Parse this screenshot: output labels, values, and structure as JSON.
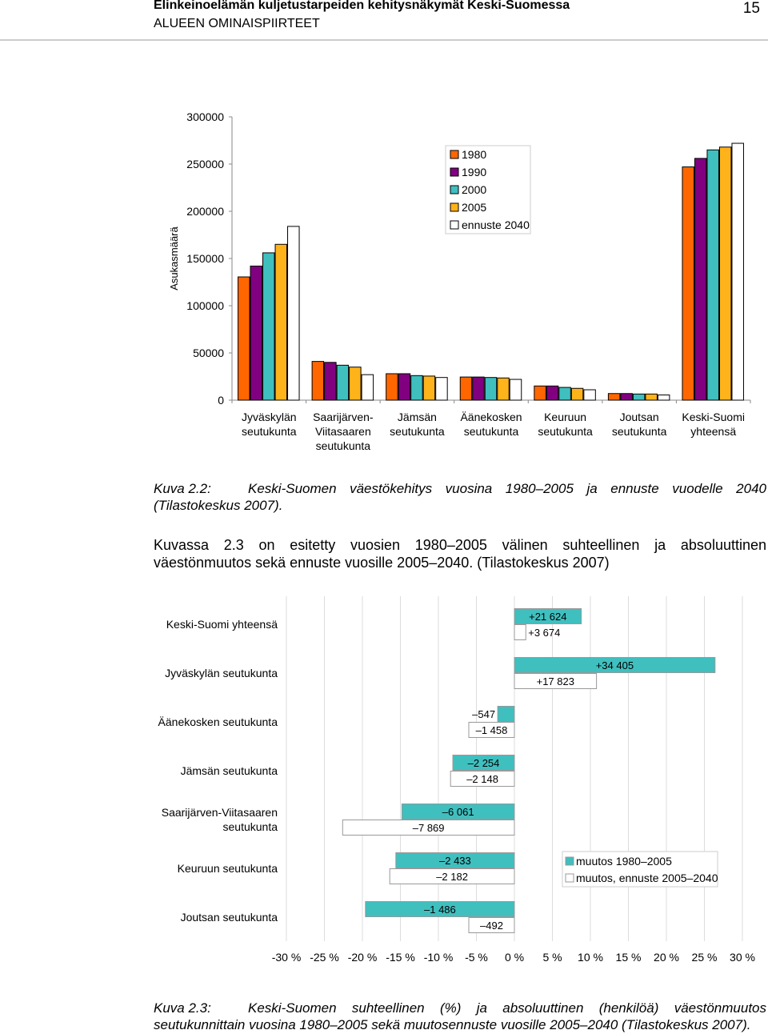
{
  "header": {
    "title": "Elinkeinoelämän kuljetustarpeiden kehitysnäkymät Keski-Suomessa",
    "section": "ALUEEN OMINAISPIIRTEET",
    "page_number": "15"
  },
  "chart_data": [
    {
      "type": "bar",
      "y_label": "Asukasmäärä",
      "categories": [
        "Jyväskylän\nseutukunta",
        "Saarijärven-\nViitasaaren\nseutukunta",
        "Jämsän\nseutukunta",
        "Äänekosken\nseutukunta",
        "Keuruun\nseutukunta",
        "Joutsan\nseutukunta",
        "Keski-Suomi\nyhteensä"
      ],
      "series": [
        {
          "name": "1980",
          "color": "#ff6600",
          "values": [
            130500,
            41000,
            28000,
            24500,
            15000,
            7000,
            247000
          ]
        },
        {
          "name": "1990",
          "color": "#800080",
          "values": [
            142000,
            40000,
            28000,
            24500,
            15000,
            7000,
            256000
          ]
        },
        {
          "name": "2000",
          "color": "#40bfbf",
          "values": [
            156000,
            37000,
            26000,
            24000,
            13500,
            6500,
            265000
          ]
        },
        {
          "name": "2005",
          "color": "#ffb31a",
          "values": [
            165000,
            35000,
            25500,
            23500,
            12500,
            6500,
            268000
          ]
        },
        {
          "name": "ennuste 2040",
          "color": "#ffffff",
          "values": [
            184000,
            27000,
            24000,
            22000,
            11000,
            5500,
            272000
          ]
        }
      ],
      "ylim": [
        0,
        300000
      ],
      "yticks": [
        0,
        50000,
        100000,
        150000,
        200000,
        250000,
        300000
      ],
      "legend": "top"
    },
    {
      "type": "hbar",
      "categories": [
        "Keski-Suomi yhteensä",
        "Jyväskylän seutukunta",
        "Äänekosken seutukunta",
        "Jämsän seutukunta",
        "Saarijärven-Viitasaaren\nseutukunta",
        "Keuruun seutukunta",
        "Joutsan seutukunta"
      ],
      "series": [
        {
          "name": "muutos 1980–2005",
          "color": "#40bfbf",
          "values": [
            8.8,
            26.4,
            -2.2,
            -8.1,
            -14.8,
            -15.6,
            -19.6
          ],
          "change_labels": [
            "+21 624",
            "+34 405",
            "–547",
            "–2 254",
            "–6 061",
            "–2 433",
            "–1 486"
          ]
        },
        {
          "name": "muutos, ennuste 2005–2040",
          "color": "#ffffff",
          "values": [
            1.5,
            10.8,
            -6.0,
            -8.4,
            -22.6,
            -16.4,
            -6.0
          ],
          "change_labels": [
            "+3 674",
            "+17 823",
            "–1 458",
            "–2 148",
            "–7 869",
            "–2 182",
            "–492"
          ]
        }
      ],
      "xlim": [
        -30,
        30
      ],
      "xticks": [
        {
          "value": -30,
          "label": "-30 %"
        },
        {
          "value": -25,
          "label": "-25 %"
        },
        {
          "value": -20,
          "label": "-20 %"
        },
        {
          "value": -15,
          "label": "-15 %"
        },
        {
          "value": -10,
          "label": "-10 %"
        },
        {
          "value": -5,
          "label": "-5 %"
        },
        {
          "value": 0,
          "label": "0 %"
        },
        {
          "value": 5,
          "label": "5 %"
        },
        {
          "value": 10,
          "label": "10 %"
        },
        {
          "value": 15,
          "label": "15 %"
        },
        {
          "value": 20,
          "label": "20 %"
        },
        {
          "value": 25,
          "label": "25 %"
        },
        {
          "value": 30,
          "label": "30 %"
        }
      ],
      "grid": true,
      "legend": "right"
    }
  ],
  "caption1": {
    "label": "Kuva 2.2:",
    "text": "Keski-Suomen väestökehitys vuosina 1980–2005 ja ennuste vuodelle 2040 (Tilastokeskus 2007)."
  },
  "paragraph": "Kuvassa 2.3 on esitetty vuosien 1980–2005 välinen suhteellinen ja absoluuttinen väestönmuutos sekä ennuste vuosille 2005–2040. (Tilastokeskus 2007)",
  "caption2": {
    "label": "Kuva 2.3:",
    "text": "Keski-Suomen suhteellinen (%) ja absoluuttinen (henkilöä) väestönmuutos seutukunnittain vuosina 1980–2005 sekä muutosennuste vuosille 2005–2040 (Tilastokeskus 2007)."
  }
}
